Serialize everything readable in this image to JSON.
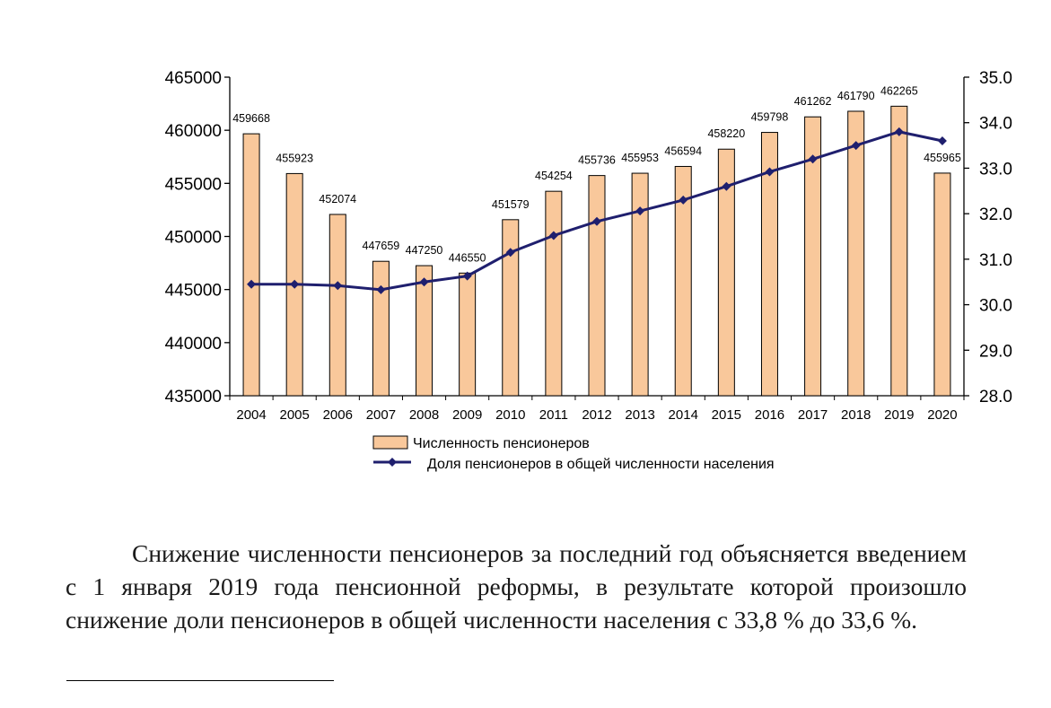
{
  "chart_data": {
    "type": "bar",
    "categories": [
      "2004",
      "2005",
      "2006",
      "2007",
      "2008",
      "2009",
      "2010",
      "2011",
      "2012",
      "2013",
      "2014",
      "2015",
      "2016",
      "2017",
      "2018",
      "2019",
      "2020"
    ],
    "series": [
      {
        "name": "Численность пенсионеров",
        "type": "bar",
        "axis": "left",
        "values": [
          459668,
          455923,
          452074,
          447659,
          447250,
          446550,
          451579,
          454254,
          455736,
          455953,
          456594,
          458220,
          459798,
          461262,
          461790,
          462265,
          455965
        ],
        "labels": [
          "459668",
          "455923",
          "452074",
          "447659",
          "447250",
          "446550",
          "451579",
          "454254",
          "455736",
          "455953",
          "456594",
          "458220",
          "459798",
          "461262",
          "461790",
          "462265",
          "455965"
        ]
      },
      {
        "name": "Доля пенсионеров в общей численности населения",
        "type": "line",
        "axis": "right",
        "values": [
          30.45,
          30.45,
          30.42,
          30.33,
          30.5,
          30.63,
          31.15,
          31.52,
          31.83,
          32.06,
          32.3,
          32.6,
          32.92,
          33.2,
          33.5,
          33.8,
          33.6
        ]
      }
    ],
    "y_left": {
      "min": 435000,
      "max": 465000,
      "ticks": [
        "465000",
        "460000",
        "455000",
        "450000",
        "445000",
        "440000",
        "435000"
      ]
    },
    "y_right": {
      "min": 28.0,
      "max": 35.0,
      "ticks": [
        "35.0",
        "34.0",
        "33.0",
        "32.0",
        "31.0",
        "30.0",
        "29.0",
        "28.0"
      ]
    },
    "legend_position": "bottom",
    "colors": {
      "bar_fill": "#f9c89b",
      "bar_stroke": "#000000",
      "line": "#1f1f6e"
    }
  },
  "text": {
    "paragraph": "Снижение численности пенсионеров за последний год объясняется введением с 1 января 2019 года пенсионной реформы, в результате которой произошло снижение доли  пенсионеров в общей численности населения с 33,8 % до 33,6 %."
  }
}
